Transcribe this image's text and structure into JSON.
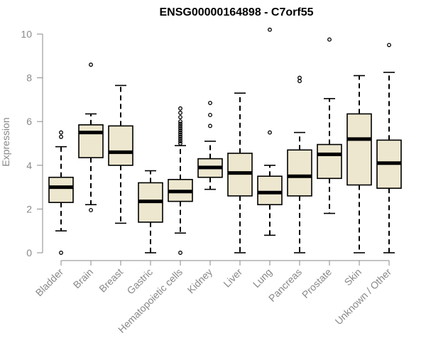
{
  "chart_data": {
    "type": "boxplot",
    "title": "ENSG00000164898 - C7orf55",
    "xlabel": "",
    "ylabel": "Expression",
    "ylim": [
      0,
      10
    ],
    "yticks": [
      0,
      2,
      4,
      6,
      8,
      10
    ],
    "categories": [
      "Bladder",
      "Brain",
      "Breast",
      "Gastric",
      "Hematopoietic cells",
      "Kidney",
      "Liver",
      "Lung",
      "Pancreas",
      "Prostate",
      "Skin",
      "Unknown / Other"
    ],
    "boxes": [
      {
        "name": "Bladder",
        "whisker_low": 1.0,
        "q1": 2.3,
        "median": 3.0,
        "q3": 3.45,
        "whisker_high": 4.85,
        "outliers": [
          0.0,
          5.3,
          5.5
        ]
      },
      {
        "name": "Brain",
        "whisker_low": 2.2,
        "q1": 4.35,
        "median": 5.5,
        "q3": 5.85,
        "whisker_high": 6.35,
        "outliers": [
          1.95,
          8.6
        ]
      },
      {
        "name": "Breast",
        "whisker_low": 1.35,
        "q1": 4.0,
        "median": 4.6,
        "q3": 5.8,
        "whisker_high": 7.65,
        "outliers": []
      },
      {
        "name": "Gastric",
        "whisker_low": 0.0,
        "q1": 1.4,
        "median": 2.35,
        "q3": 3.2,
        "whisker_high": 3.75,
        "outliers": []
      },
      {
        "name": "Hematopoietic cells",
        "whisker_low": 0.9,
        "q1": 2.35,
        "median": 2.8,
        "q3": 3.35,
        "whisker_high": 4.9,
        "outliers": [
          0.0,
          5.0,
          5.1,
          5.2,
          5.3,
          5.4,
          5.5,
          5.6,
          5.7,
          5.8,
          5.9,
          6.0,
          6.2,
          6.4,
          6.6
        ]
      },
      {
        "name": "Kidney",
        "whisker_low": 2.9,
        "q1": 3.45,
        "median": 3.9,
        "q3": 4.3,
        "whisker_high": 5.1,
        "outliers": [
          5.8,
          6.3,
          6.85
        ]
      },
      {
        "name": "Liver",
        "whisker_low": 0.0,
        "q1": 2.6,
        "median": 3.65,
        "q3": 4.55,
        "whisker_high": 7.3,
        "outliers": []
      },
      {
        "name": "Lung",
        "whisker_low": 0.8,
        "q1": 2.2,
        "median": 2.75,
        "q3": 3.5,
        "whisker_high": 4.0,
        "outliers": [
          5.5,
          10.2
        ]
      },
      {
        "name": "Pancreas",
        "whisker_low": 0.0,
        "q1": 2.6,
        "median": 3.5,
        "q3": 4.7,
        "whisker_high": 5.5,
        "outliers": [
          7.85,
          8.0
        ]
      },
      {
        "name": "Prostate",
        "whisker_low": 1.8,
        "q1": 3.4,
        "median": 4.5,
        "q3": 4.95,
        "whisker_high": 7.05,
        "outliers": [
          9.75
        ]
      },
      {
        "name": "Skin",
        "whisker_low": 0.0,
        "q1": 3.1,
        "median": 5.2,
        "q3": 6.35,
        "whisker_high": 8.1,
        "outliers": []
      },
      {
        "name": "Unknown / Other",
        "whisker_low": 0.0,
        "q1": 2.95,
        "median": 4.1,
        "q3": 5.15,
        "whisker_high": 8.25,
        "outliers": [
          9.5
        ]
      }
    ],
    "colors": {
      "box_fill": "#ede7cf",
      "box_stroke": "#000000",
      "axis": "#888888"
    }
  }
}
